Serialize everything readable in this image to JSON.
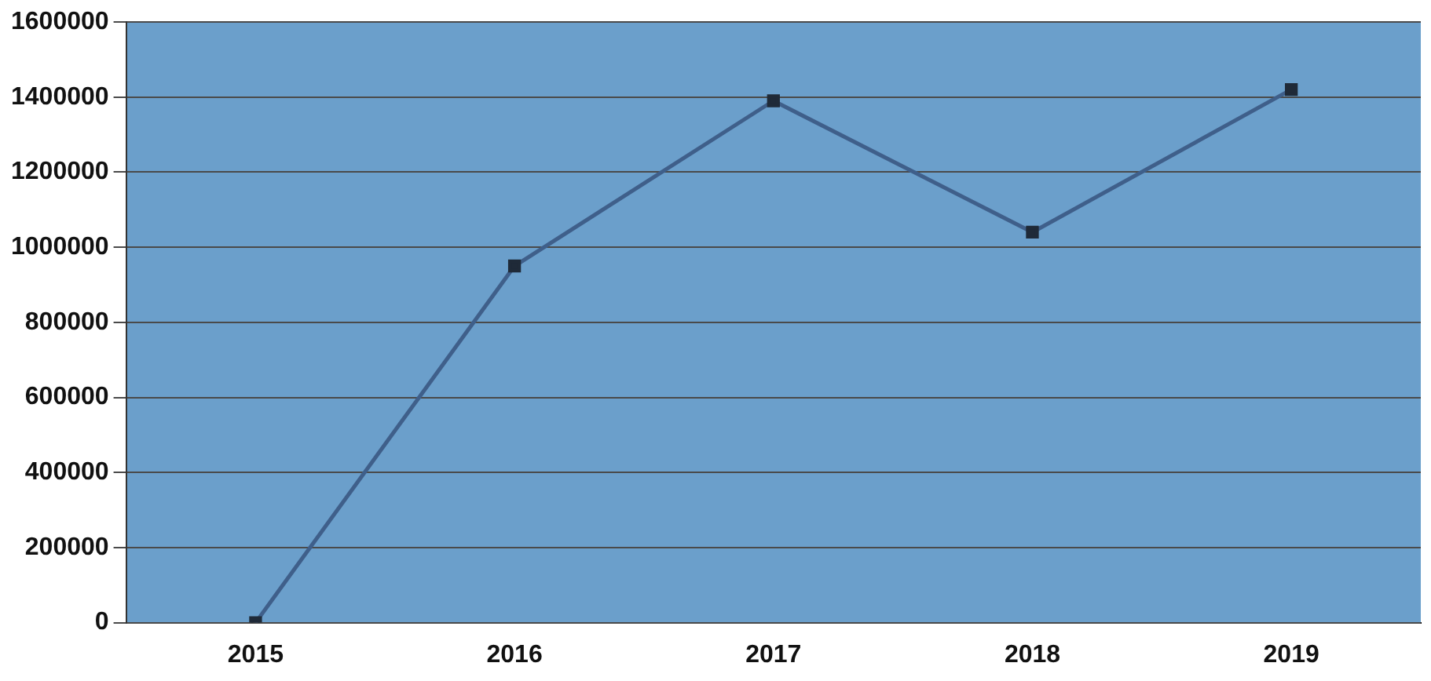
{
  "chart_data": {
    "type": "line",
    "categories": [
      "2015",
      "2016",
      "2017",
      "2018",
      "2019"
    ],
    "series": [
      {
        "color": "#3f5f8a",
        "values": [
          0,
          950000,
          1390000,
          1040000,
          1420000
        ]
      }
    ],
    "ylim": [
      0,
      1600000
    ],
    "yticks": [
      0,
      200000,
      400000,
      600000,
      800000,
      1000000,
      1200000,
      1400000,
      1600000
    ],
    "grid": "y",
    "legend": false,
    "marker": "square",
    "line_style": "solid"
  }
}
